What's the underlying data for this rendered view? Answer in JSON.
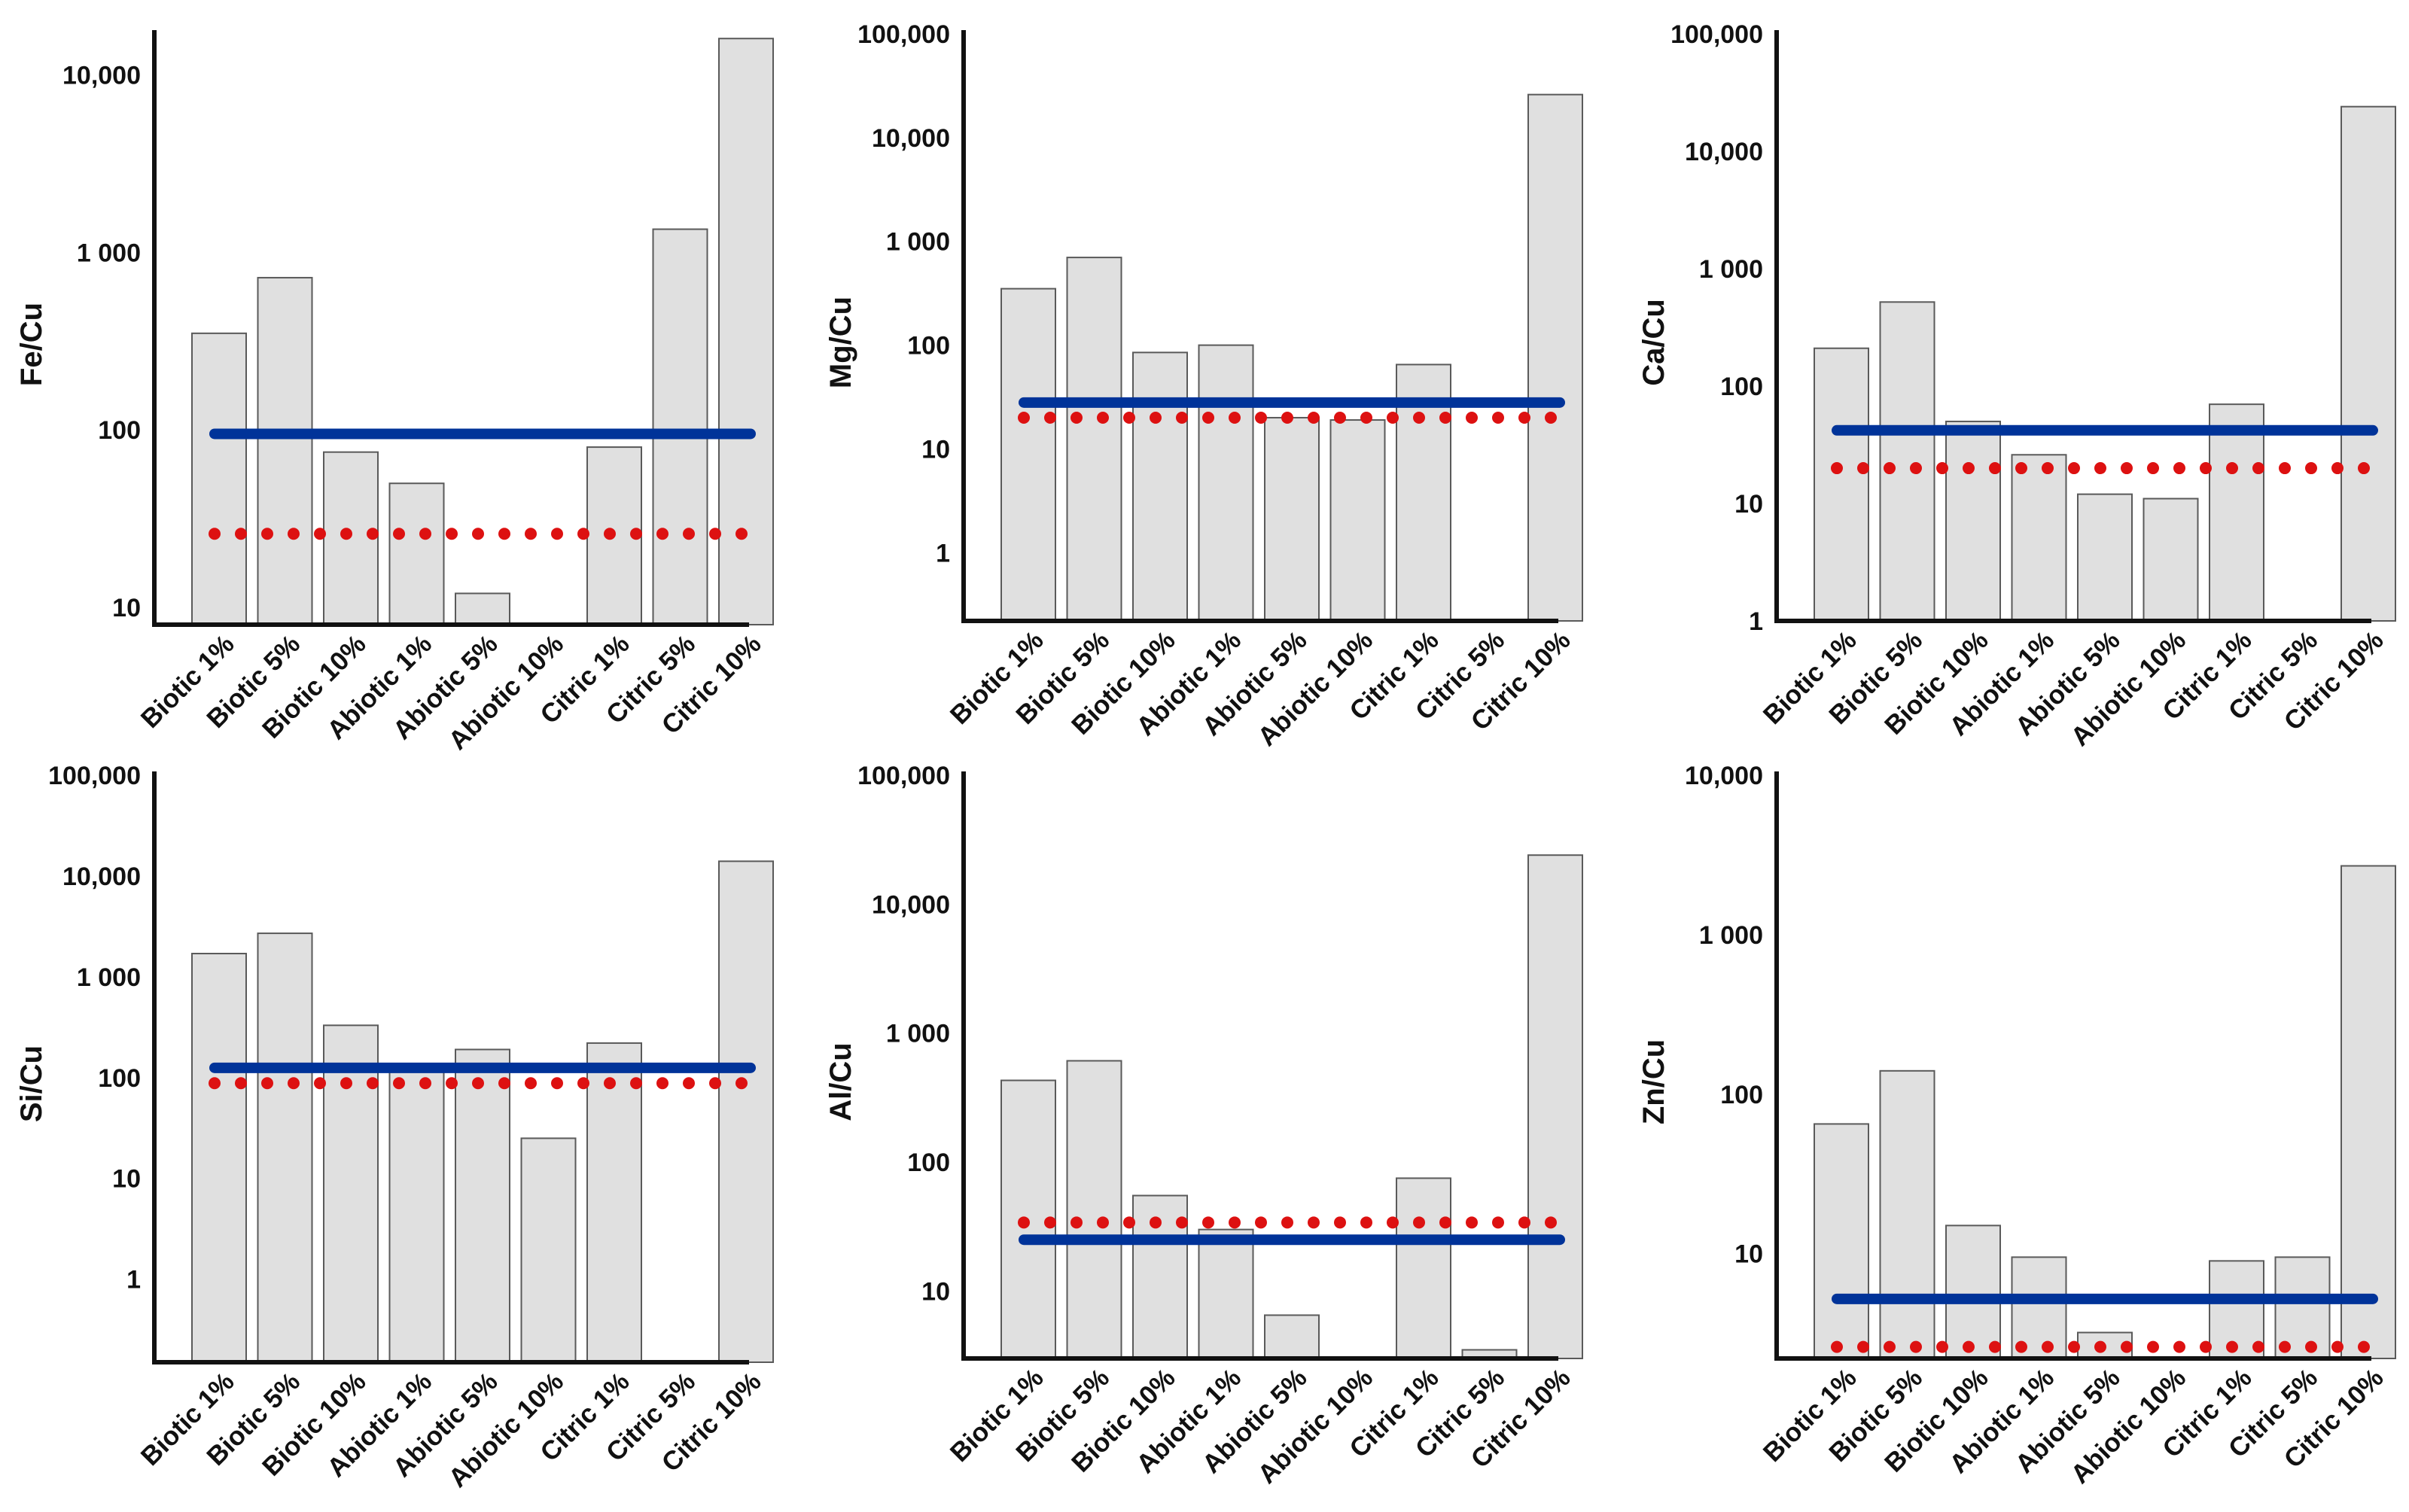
{
  "style": {
    "bar_fill": "#e0e0e0",
    "bar_stroke": "#5a5a5a",
    "axis_color": "#111111",
    "solid_line_color": "#003399",
    "dotted_line_color": "#dd1111"
  },
  "chart_data": [
    {
      "type": "bar",
      "scale": "log",
      "ylabel": "Fe/Cu",
      "categories": [
        "Biotic 1%",
        "Biotic 5%",
        "Biotic 10%",
        "Abiotic 1%",
        "Abiotic 5%",
        "Abiotic 10%",
        "Citric 1%",
        "Citric 5%",
        "Citric 10%"
      ],
      "values": [
        350,
        720,
        75,
        50,
        12,
        null,
        80,
        1350,
        16000
      ],
      "yticks": [
        10,
        100,
        1000,
        10000
      ],
      "ytick_labels": [
        "10",
        "100",
        "1 000",
        "10,000"
      ],
      "ylim": [
        8,
        17000
      ],
      "reference_lines": [
        {
          "style": "solid",
          "value": 95
        },
        {
          "style": "dotted",
          "value": 26
        }
      ]
    },
    {
      "type": "bar",
      "scale": "log",
      "ylabel": "Mg/Cu",
      "categories": [
        "Biotic 1%",
        "Biotic 5%",
        "Biotic 10%",
        "Abiotic 1%",
        "Abiotic 5%",
        "Abiotic 10%",
        "Citric 1%",
        "Citric 5%",
        "Citric 10%"
      ],
      "values": [
        350,
        700,
        85,
        100,
        20,
        19,
        65,
        null,
        26000
      ],
      "yticks": [
        1,
        10,
        100,
        1000,
        10000,
        100000
      ],
      "ytick_labels": [
        "1",
        "10",
        "100",
        "1 000",
        "10,000",
        "100,000"
      ],
      "ylim": [
        0.22,
        100000
      ],
      "reference_lines": [
        {
          "style": "solid",
          "value": 28
        },
        {
          "style": "dotted",
          "value": 20
        }
      ]
    },
    {
      "type": "bar",
      "scale": "log",
      "ylabel": "Ca/Cu",
      "categories": [
        "Biotic 1%",
        "Biotic 5%",
        "Biotic 10%",
        "Abiotic 1%",
        "Abiotic 5%",
        "Abiotic 10%",
        "Citric 1%",
        "Citric 5%",
        "Citric 10%"
      ],
      "values": [
        210,
        520,
        50,
        26,
        12,
        11,
        70,
        null,
        24000
      ],
      "yticks": [
        1,
        10,
        100,
        1000,
        10000,
        100000
      ],
      "ytick_labels": [
        "1",
        "10",
        "100",
        "1 000",
        "10,000",
        "100,000"
      ],
      "ylim": [
        1,
        100000
      ],
      "reference_lines": [
        {
          "style": "solid",
          "value": 42
        },
        {
          "style": "dotted",
          "value": 20
        }
      ]
    },
    {
      "type": "bar",
      "scale": "log",
      "ylabel": "Si/Cu",
      "categories": [
        "Biotic 1%",
        "Biotic 5%",
        "Biotic 10%",
        "Abiotic 1%",
        "Abiotic 5%",
        "Abiotic 10%",
        "Citric 1%",
        "Citric 5%",
        "Citric 10%"
      ],
      "values": [
        1700,
        2700,
        330,
        120,
        190,
        25,
        220,
        null,
        14000
      ],
      "yticks": [
        1,
        10,
        100,
        1000,
        10000,
        100000
      ],
      "ytick_labels": [
        "1",
        "10",
        "100",
        "1 000",
        "10,000",
        "100,000"
      ],
      "ylim": [
        0.15,
        100000
      ],
      "reference_lines": [
        {
          "style": "solid",
          "value": 125
        },
        {
          "style": "dotted",
          "value": 88
        }
      ]
    },
    {
      "type": "bar",
      "scale": "log",
      "ylabel": "Al/Cu",
      "categories": [
        "Biotic 1%",
        "Biotic 5%",
        "Biotic 10%",
        "Abiotic 1%",
        "Abiotic 5%",
        "Abiotic 10%",
        "Citric 1%",
        "Citric 5%",
        "Citric 10%"
      ],
      "values": [
        430,
        610,
        55,
        30,
        6.5,
        null,
        75,
        3.5,
        24000
      ],
      "yticks": [
        10,
        100,
        1000,
        10000,
        100000
      ],
      "ytick_labels": [
        "10",
        "100",
        "1 000",
        "10,000",
        "100,000"
      ],
      "ylim": [
        3,
        100000
      ],
      "reference_lines": [
        {
          "style": "solid",
          "value": 25
        },
        {
          "style": "dotted",
          "value": 34
        }
      ]
    },
    {
      "type": "bar",
      "scale": "log",
      "ylabel": "Zn/Cu",
      "categories": [
        "Biotic 1%",
        "Biotic 5%",
        "Biotic 10%",
        "Abiotic 1%",
        "Abiotic 5%",
        "Abiotic 10%",
        "Citric 1%",
        "Citric 5%",
        "Citric 10%"
      ],
      "values": [
        65,
        140,
        15,
        9.5,
        3.2,
        null,
        9,
        9.5,
        2700
      ],
      "yticks": [
        10,
        100,
        1000,
        10000
      ],
      "ytick_labels": [
        "10",
        "100",
        "1 000",
        "10,000"
      ],
      "ylim": [
        2.2,
        10000
      ],
      "reference_lines": [
        {
          "style": "solid",
          "value": 5.2
        },
        {
          "style": "dotted",
          "value": 2.6
        }
      ]
    }
  ]
}
